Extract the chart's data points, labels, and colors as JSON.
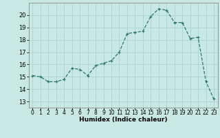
{
  "x": [
    0,
    1,
    2,
    3,
    4,
    5,
    6,
    7,
    8,
    9,
    10,
    11,
    12,
    13,
    14,
    15,
    16,
    17,
    18,
    19,
    20,
    21,
    22,
    23
  ],
  "y": [
    15.1,
    15.0,
    14.6,
    14.6,
    14.8,
    15.7,
    15.6,
    15.1,
    15.9,
    16.1,
    16.3,
    17.0,
    18.5,
    18.6,
    18.7,
    19.9,
    20.5,
    20.4,
    19.4,
    19.4,
    18.1,
    18.2,
    14.6,
    13.2
  ],
  "line_color": "#2d7a6a",
  "bg_color": "#c8e8e4",
  "grid_color": "#aad4ce",
  "xlabel": "Humidex (Indice chaleur)",
  "ylabel_ticks": [
    13,
    14,
    15,
    16,
    17,
    18,
    19,
    20
  ],
  "ylim": [
    12.5,
    21.0
  ],
  "xlim": [
    -0.5,
    23.5
  ],
  "label_fontsize": 6.5,
  "tick_fontsize": 6.0
}
